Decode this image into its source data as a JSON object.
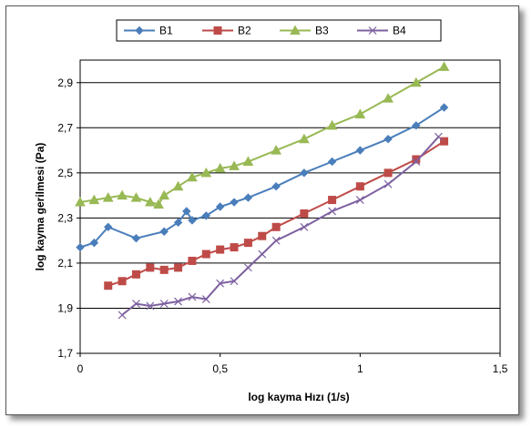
{
  "chart_data": {
    "type": "scatter",
    "xlabel": "log kayma Hızı (1/s)",
    "ylabel": "log kayma gerilmesi (Pa)",
    "xlim": [
      0,
      1.5
    ],
    "ylim": [
      1.7,
      3.0
    ],
    "x_ticks": [
      "0",
      "0,5",
      "1",
      "1,5"
    ],
    "x_tick_values": [
      0,
      0.5,
      1,
      1.5
    ],
    "y_ticks": [
      "1,7",
      "1,9",
      "2,1",
      "2,3",
      "2,5",
      "2,7",
      "2,9"
    ],
    "y_tick_values": [
      1.7,
      1.9,
      2.1,
      2.3,
      2.5,
      2.7,
      2.9
    ],
    "grid": "horizontal",
    "legend_position": "top",
    "series": [
      {
        "name": "B1",
        "color": "#4a7ebb",
        "marker": "diamond",
        "x": [
          0.0,
          0.05,
          0.1,
          0.2,
          0.3,
          0.35,
          0.38,
          0.4,
          0.45,
          0.5,
          0.55,
          0.6,
          0.7,
          0.8,
          0.9,
          1.0,
          1.1,
          1.2,
          1.3
        ],
        "y": [
          2.17,
          2.19,
          2.26,
          2.21,
          2.24,
          2.28,
          2.33,
          2.29,
          2.31,
          2.35,
          2.37,
          2.39,
          2.44,
          2.5,
          2.55,
          2.6,
          2.65,
          2.71,
          2.79
        ]
      },
      {
        "name": "B2",
        "color": "#be4b48",
        "marker": "square",
        "x": [
          0.1,
          0.15,
          0.2,
          0.25,
          0.3,
          0.35,
          0.4,
          0.45,
          0.5,
          0.55,
          0.6,
          0.65,
          0.7,
          0.8,
          0.9,
          1.0,
          1.1,
          1.2,
          1.3
        ],
        "y": [
          2.0,
          2.02,
          2.05,
          2.08,
          2.07,
          2.08,
          2.11,
          2.14,
          2.16,
          2.17,
          2.19,
          2.22,
          2.26,
          2.32,
          2.38,
          2.44,
          2.5,
          2.56,
          2.64
        ]
      },
      {
        "name": "B3",
        "color": "#98b954",
        "marker": "triangle",
        "x": [
          0.0,
          0.05,
          0.1,
          0.15,
          0.2,
          0.25,
          0.28,
          0.3,
          0.35,
          0.4,
          0.45,
          0.5,
          0.55,
          0.6,
          0.7,
          0.8,
          0.9,
          1.0,
          1.1,
          1.2,
          1.3
        ],
        "y": [
          2.37,
          2.38,
          2.39,
          2.4,
          2.39,
          2.37,
          2.36,
          2.4,
          2.44,
          2.48,
          2.5,
          2.52,
          2.53,
          2.55,
          2.6,
          2.65,
          2.71,
          2.76,
          2.83,
          2.9,
          2.97
        ]
      },
      {
        "name": "B4",
        "color": "#7d60a0",
        "marker": "x",
        "x": [
          0.15,
          0.2,
          0.25,
          0.3,
          0.35,
          0.4,
          0.45,
          0.5,
          0.55,
          0.6,
          0.65,
          0.7,
          0.8,
          0.9,
          1.0,
          1.1,
          1.2,
          1.28
        ],
        "y": [
          1.87,
          1.92,
          1.91,
          1.92,
          1.93,
          1.95,
          1.94,
          2.01,
          2.02,
          2.08,
          2.14,
          2.2,
          2.26,
          2.33,
          2.38,
          2.45,
          2.55,
          2.66
        ]
      }
    ]
  }
}
